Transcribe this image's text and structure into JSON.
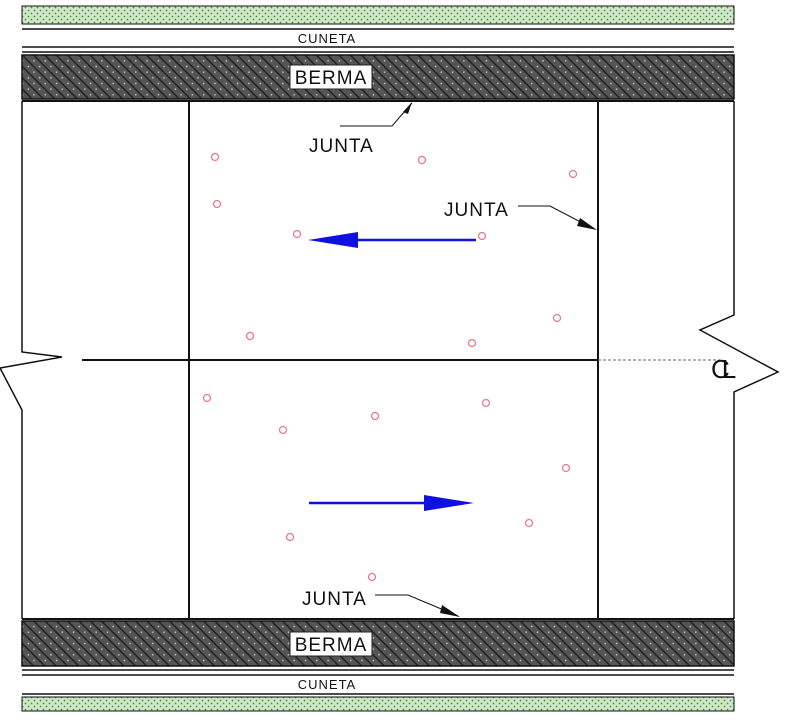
{
  "labels": {
    "cuneta_top": "CUNETA",
    "berma_top": "BERMA",
    "junta_top": "JUNTA",
    "junta_right": "JUNTA",
    "junta_bottom": "JUNTA",
    "berma_bottom": "BERMA",
    "cuneta_bottom": "CUNETA",
    "centerline": "CL"
  },
  "colors": {
    "grass": "#cfe8c8",
    "grass_dots": "#4a8a3a",
    "berma_fill": "#4a4a4a",
    "line": "#111111",
    "arrow": "#1010e0",
    "marker": "#e87a8a"
  },
  "arrows": {
    "upper": "left",
    "lower": "right"
  }
}
